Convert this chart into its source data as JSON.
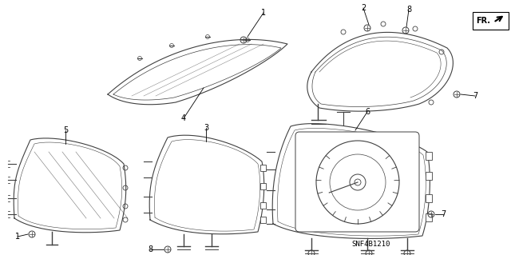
{
  "bg_color": "#ffffff",
  "part_code": "SNF4B1210",
  "line_color": "#404040",
  "text_color": "#000000",
  "figsize": [
    6.4,
    3.19
  ],
  "dpi": 100
}
